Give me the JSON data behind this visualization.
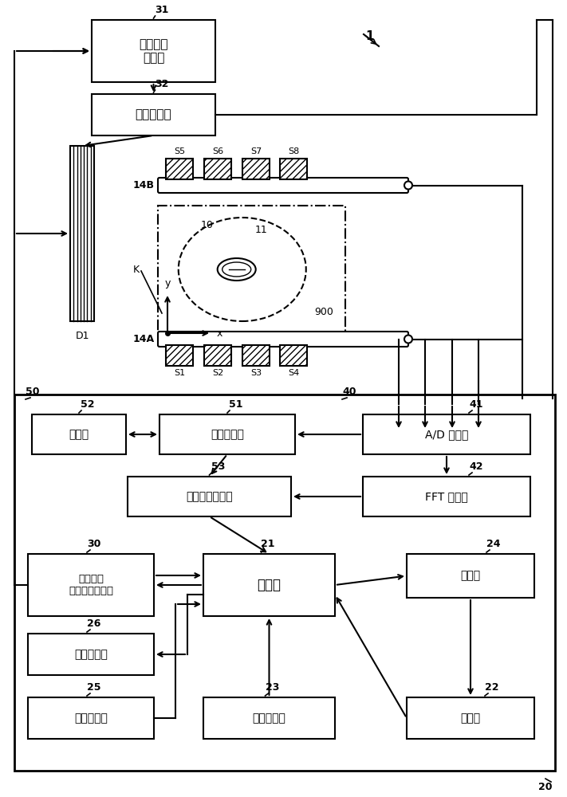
{
  "background": "#ffffff",
  "fig_width": 7.11,
  "fig_height": 10.0,
  "dpi": 100,
  "labels": {
    "box_31": "驱动信号\n生成部",
    "box_32": "电流检测部",
    "box_52": "存储器",
    "box_51": "校准运算部",
    "box_53": "位置信息运算部",
    "box_41": "A/D 转换部",
    "box_42": "FFT 运算部",
    "box_30": "驱动线圈\n输入信号调整部",
    "box_21": "控制部",
    "box_24": "显示部",
    "box_26": "无线发送部",
    "box_25": "无线接收部",
    "box_23": "操作输入部",
    "box_22": "存储部"
  }
}
